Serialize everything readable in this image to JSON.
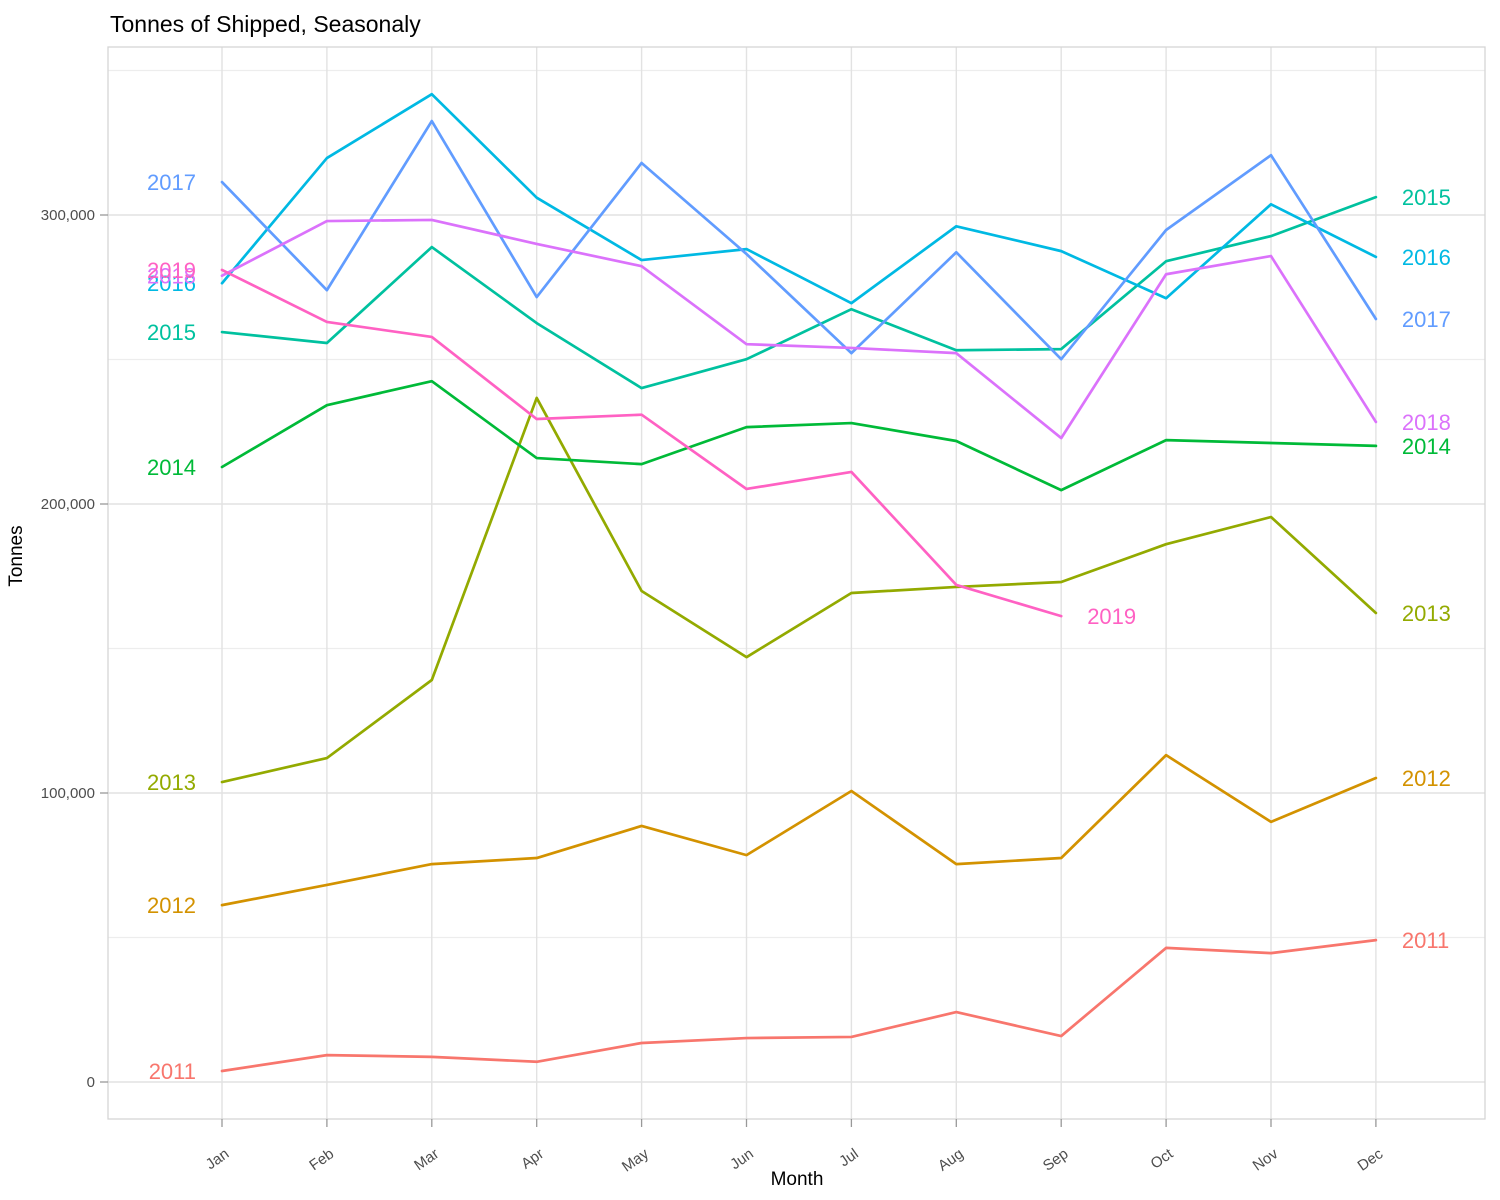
{
  "title": "Tonnes of Shipped, Seasonaly",
  "axes": {
    "x": {
      "label": "Month"
    },
    "y": {
      "label": "Tonnes",
      "tick_values": [
        0,
        100000,
        200000,
        300000
      ],
      "tick_labels": [
        "0",
        "100,000",
        "200,000",
        "300,000"
      ],
      "minor_tick_values": [
        50000,
        150000,
        250000,
        350000
      ]
    }
  },
  "chart_data": {
    "type": "line",
    "title": "Tonnes of Shipped, Seasonaly",
    "xlabel": "Month",
    "ylabel": "Tonnes",
    "x": [
      "Jan",
      "Feb",
      "Mar",
      "Apr",
      "May",
      "Jun",
      "Jul",
      "Aug",
      "Sep",
      "Oct",
      "Nov",
      "Dec"
    ],
    "ylim": [
      0,
      358000
    ],
    "grid": "major and minor horizontal, major vertical, light gray on white",
    "legend": "direct year labels at both ends of each line, colored as the line",
    "series": [
      {
        "name": "2011",
        "color": "#F8766D",
        "values": [
          3800,
          9300,
          8700,
          7000,
          13500,
          15200,
          15600,
          24200,
          15900,
          46400,
          44600,
          49100
        ]
      },
      {
        "name": "2012",
        "color": "#D39200",
        "values": [
          61200,
          68200,
          75400,
          77500,
          88600,
          78500,
          100700,
          75400,
          77500,
          113100,
          90000,
          105200
        ]
      },
      {
        "name": "2013",
        "color": "#93AA00",
        "values": [
          103800,
          112100,
          139100,
          236700,
          169900,
          147000,
          169200,
          171300,
          173000,
          186100,
          195500,
          162300
        ]
      },
      {
        "name": "2014",
        "color": "#00BA38",
        "values": [
          212800,
          234200,
          242500,
          215900,
          213800,
          226600,
          228000,
          221800,
          204800,
          222100,
          221100,
          220100
        ]
      },
      {
        "name": "2015",
        "color": "#00C19F",
        "values": [
          259500,
          255700,
          288900,
          262600,
          240100,
          250100,
          267400,
          253200,
          253600,
          284000,
          292700,
          306200
        ]
      },
      {
        "name": "2016",
        "color": "#00B9E3",
        "values": [
          276400,
          319700,
          341800,
          306000,
          284400,
          288200,
          269500,
          296100,
          287500,
          271200,
          303700,
          285500
        ]
      },
      {
        "name": "2017",
        "color": "#619CFF",
        "values": [
          311400,
          274000,
          332500,
          271600,
          318000,
          286500,
          252200,
          287100,
          250100,
          294800,
          320700,
          264000
        ]
      },
      {
        "name": "2018",
        "color": "#DB72FB",
        "values": [
          279000,
          297900,
          298300,
          290000,
          282300,
          255300,
          254000,
          252200,
          222800,
          279500,
          285800,
          228400
        ]
      },
      {
        "name": "2019",
        "color": "#FF61C3",
        "values": [
          281000,
          263000,
          257800,
          229400,
          230900,
          205200,
          211100,
          172000,
          161200
        ]
      }
    ]
  },
  "style_colors": {
    "panel_border": "#d5d5d5",
    "grid_major": "#e2e2e2",
    "grid_minor": "#ededed",
    "tick_mark": "#999999",
    "tick_text": "#4d4d4d"
  }
}
